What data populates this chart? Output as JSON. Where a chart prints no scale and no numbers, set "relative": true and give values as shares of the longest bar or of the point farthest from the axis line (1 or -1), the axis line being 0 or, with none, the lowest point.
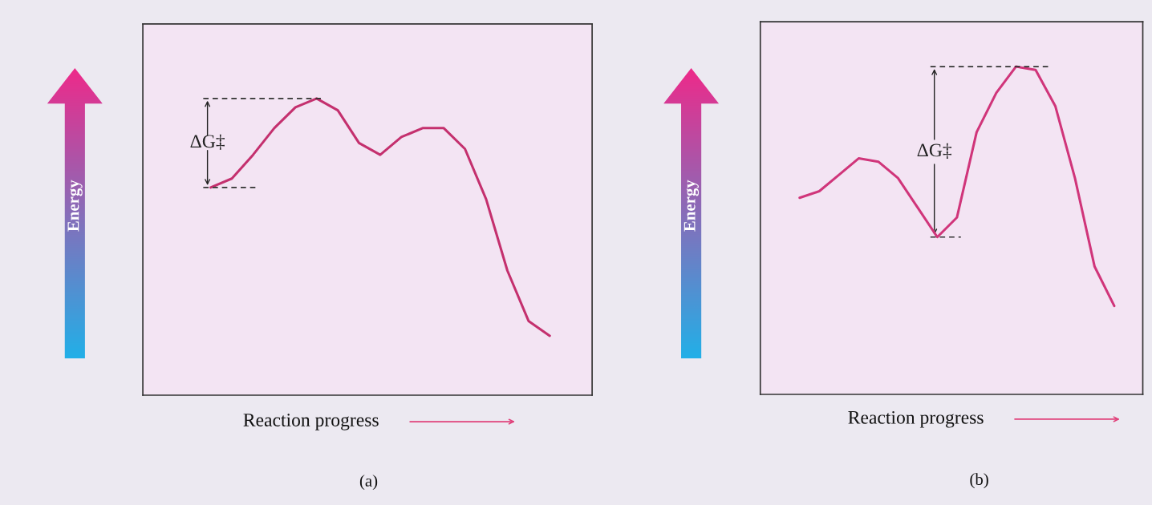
{
  "chart_data": [
    {
      "type": "line",
      "title": "(a)",
      "xlabel": "Reaction progress",
      "ylabel": "Energy",
      "relative": true,
      "annotations": [
        "ΔG‡"
      ],
      "categories": [
        null,
        null,
        null,
        null,
        null,
        null,
        null,
        null,
        null,
        null,
        null,
        null,
        null,
        null,
        null,
        null,
        null
      ],
      "ref_lines": [
        {
          "axis": "y",
          "value": 1.0,
          "line_style": "dashed"
        },
        {
          "axis": "y",
          "value": 0.7,
          "line_style": "dashed"
        }
      ],
      "series": [
        {
          "color": "#c4306e",
          "values": [
            0.7,
            0.73,
            0.81,
            0.9,
            0.97,
            1.0,
            0.96,
            0.85,
            0.81,
            0.87,
            0.9,
            0.9,
            0.83,
            0.66,
            0.42,
            0.25,
            0.2
          ]
        }
      ]
    },
    {
      "type": "line",
      "title": "(b)",
      "xlabel": "Reaction progress",
      "ylabel": "Energy",
      "relative": true,
      "annotations": [
        "ΔG‡"
      ],
      "categories": [
        null,
        null,
        null,
        null,
        null,
        null,
        null,
        null,
        null,
        null,
        null,
        null,
        null,
        null,
        null,
        null,
        null
      ],
      "ref_lines": [
        {
          "axis": "y",
          "value": 1.0,
          "line_style": "dashed"
        },
        {
          "axis": "y",
          "value": 0.48,
          "line_style": "dashed"
        }
      ],
      "series": [
        {
          "color": "#d0357a",
          "values": [
            0.6,
            0.62,
            0.67,
            0.72,
            0.71,
            0.66,
            0.57,
            0.48,
            0.54,
            0.8,
            0.92,
            1.0,
            0.99,
            0.88,
            0.66,
            0.39,
            0.27
          ]
        }
      ]
    }
  ]
}
